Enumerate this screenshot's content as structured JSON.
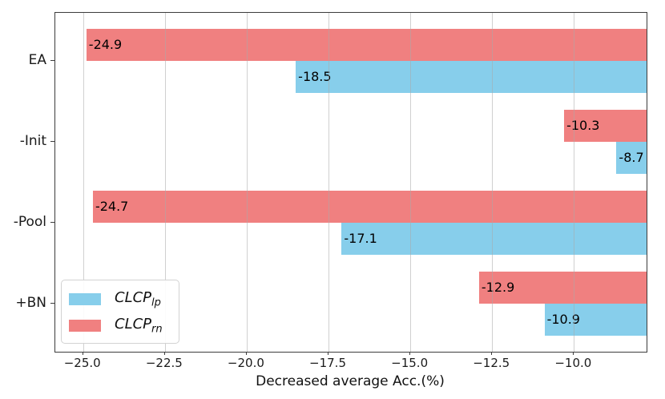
{
  "chart_data": {
    "type": "bar",
    "orientation": "horizontal",
    "title": "",
    "xlabel": "Decreased average Acc.(%)",
    "ylabel": "",
    "categories": [
      "EA",
      "-Init",
      "-Pool",
      "+BN"
    ],
    "series": [
      {
        "name": "CLCP_lp",
        "label_base": "CLCP",
        "label_sub": "lp",
        "color": "#87CEEB",
        "values": [
          -18.5,
          -8.7,
          -17.1,
          -10.9
        ]
      },
      {
        "name": "CLCP_rn",
        "label_base": "CLCP",
        "label_sub": "rn",
        "color": "#F08080",
        "values": [
          -24.9,
          -10.3,
          -24.7,
          -12.9
        ]
      }
    ],
    "row_order_top_to_bottom": [
      "CLCP_rn",
      "CLCP_lp"
    ],
    "bar_value_labels": [
      "-24.9",
      "-18.5",
      "-10.3",
      "-8.7",
      "-24.7",
      "-17.1",
      "-12.9",
      "-10.9"
    ],
    "xlim": [
      -25.85,
      -7.78
    ],
    "xticks": [
      -25.0,
      -22.5,
      -20.0,
      -17.5,
      -15.0,
      -12.5,
      -10.0
    ],
    "xtick_labels": [
      "−25.0",
      "−22.5",
      "−20.0",
      "−17.5",
      "−15.0",
      "−12.5",
      "−10.0"
    ],
    "grid": "vertical",
    "legend_position": "lower-left",
    "colors": {
      "lp_bar": "#87CEEB",
      "rn_bar": "#F08080",
      "grid": "#d3d3d3",
      "spine": "#3c3c3c",
      "value_label": "#000000",
      "background": "#ffffff"
    }
  }
}
